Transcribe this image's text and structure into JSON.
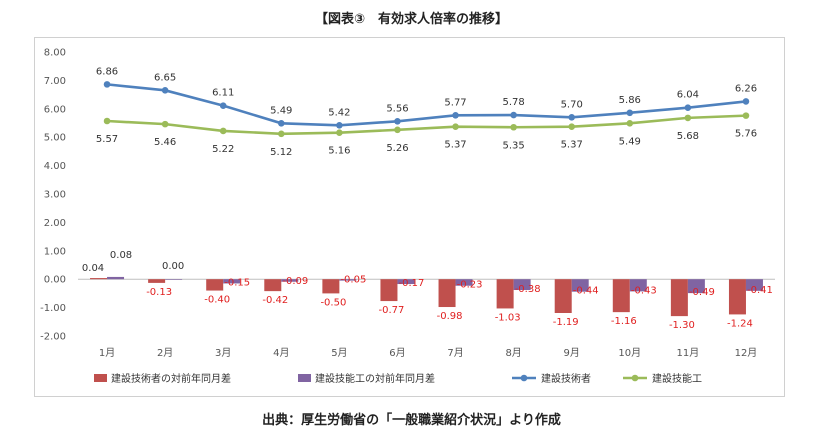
{
  "title": "【図表③　有効求人倍率の推移】",
  "source": "出典：厚生労働省の「一般職業紹介状況」より作成",
  "chart_data": {
    "type": "bar+line",
    "categories": [
      "1月",
      "2月",
      "3月",
      "4月",
      "5月",
      "6月",
      "7月",
      "8月",
      "9月",
      "10月",
      "11月",
      "12月"
    ],
    "ylim": [
      -2.0,
      8.0
    ],
    "yticks": [
      "8.00",
      "7.00",
      "6.00",
      "5.00",
      "4.00",
      "3.00",
      "2.00",
      "1.00",
      "0.00",
      "-1.00",
      "-2.00"
    ],
    "grid": false,
    "legend_position": "bottom",
    "bar_series": [
      {
        "name": "建設技術者の対前年同月差",
        "color": "#c0504d",
        "values": [
          0.04,
          -0.13,
          -0.4,
          -0.42,
          -0.5,
          -0.77,
          -0.98,
          -1.03,
          -1.19,
          -1.16,
          -1.3,
          -1.24
        ],
        "labels": [
          "0.04",
          "-0.13",
          "-0.40",
          "-0.42",
          "-0.50",
          "-0.77",
          "-0.98",
          "-1.03",
          "-1.19",
          "-1.16",
          "-1.30",
          "-1.24"
        ]
      },
      {
        "name": "建設技能工の対前年同月差",
        "color": "#8064a2",
        "values": [
          0.08,
          0.0,
          -0.15,
          -0.09,
          -0.05,
          -0.17,
          -0.23,
          -0.38,
          -0.44,
          -0.43,
          -0.49,
          -0.41
        ],
        "labels": [
          "0.08",
          "0.00",
          "-0.15",
          "-0.09",
          "-0.05",
          "-0.17",
          "-0.23",
          "-0.38",
          "-0.44",
          "-0.43",
          "-0.49",
          "-0.41"
        ]
      }
    ],
    "line_series": [
      {
        "name": "建設技術者",
        "color": "#4f81bd",
        "values": [
          6.86,
          6.65,
          6.11,
          5.49,
          5.42,
          5.56,
          5.77,
          5.78,
          5.7,
          5.86,
          6.04,
          6.26
        ],
        "labels": [
          "6.86",
          "6.65",
          "6.11",
          "5.49",
          "5.42",
          "5.56",
          "5.77",
          "5.78",
          "5.70",
          "5.86",
          "6.04",
          "6.26"
        ]
      },
      {
        "name": "建設技能工",
        "color": "#9bbb59",
        "values": [
          5.57,
          5.46,
          5.22,
          5.12,
          5.16,
          5.26,
          5.37,
          5.35,
          5.37,
          5.49,
          5.68,
          5.76
        ],
        "labels": [
          "5.57",
          "5.46",
          "5.22",
          "5.12",
          "5.16",
          "5.26",
          "5.37",
          "5.35",
          "5.37",
          "5.49",
          "5.68",
          "5.76"
        ]
      }
    ]
  }
}
